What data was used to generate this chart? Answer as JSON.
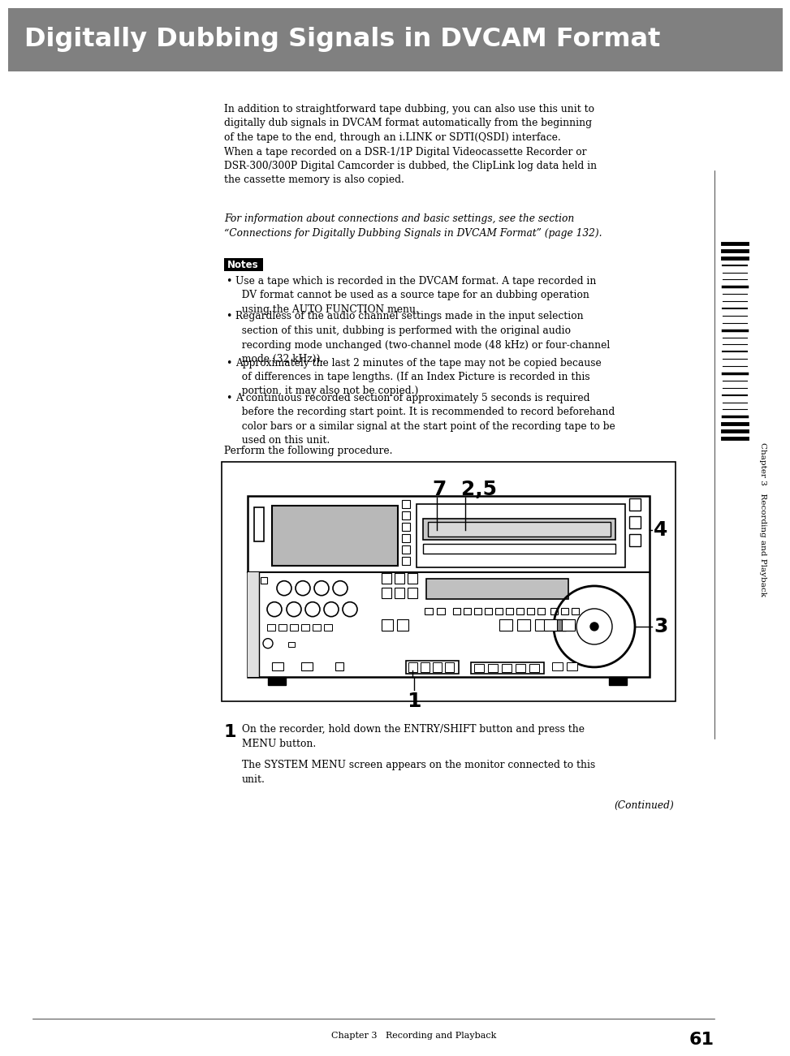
{
  "title": "Digitally Dubbing Signals in DVCAM Format",
  "title_bg_color": "#808080",
  "title_text_color": "#ffffff",
  "page_bg": "#ffffff",
  "body_text_color": "#000000",
  "intro_text": "In addition to straightforward tape dubbing, you can also use this unit to\ndigitally dub signals in DVCAM format automatically from the beginning\nof the tape to the end, through an i.LINK or SDTI(QSDI) interface.\nWhen a tape recorded on a DSR-1/1P Digital Videocassette Recorder or\nDSR-300/300P Digital Camcorder is dubbed, the ClipLink log data held in\nthe cassette memory is also copied.",
  "italic_text": "For information about connections and basic settings, see the section\n“Connections for Digitally Dubbing Signals in DVCAM Format” (page 132).",
  "notes_label": "Notes",
  "notes": [
    "Use a tape which is recorded in the DVCAM format. A tape recorded in\n  DV format cannot be used as a source tape for an dubbing operation\n  using the AUTO FUNCTION menu.",
    "Regardless of the audio channel settings made in the input selection\n  section of this unit, dubbing is performed with the original audio\n  recording mode unchanged (two-channel mode (48 kHz) or four-channel\n  mode (32 kHz)).",
    "Approximately the last 2 minutes of the tape may not be copied because\n  of differences in tape lengths. (If an Index Picture is recorded in this\n  portion, it may also not be copied.)",
    "A continuous recorded section of approximately 5 seconds is required\n  before the recording start point. It is recommended to record beforehand\n  color bars or a similar signal at the start point of the recording tape to be\n  used on this unit."
  ],
  "perform_text": "Perform the following procedure.",
  "step1_num": "1",
  "step1_text": "On the recorder, hold down the ENTRY/SHIFT button and press the\nMENU button.",
  "step1_result": "The SYSTEM MENU screen appears on the monitor connected to this\nunit.",
  "continued": "(Continued)",
  "footer": "Chapter 3   Recording and Playback",
  "page_num": "61",
  "sidebar_text": "Chapter 3   Recording and Playback",
  "diagram_label_725": "7  2,5",
  "diagram_label_4": "4",
  "diagram_label_3": "3",
  "diagram_label_1": "1"
}
